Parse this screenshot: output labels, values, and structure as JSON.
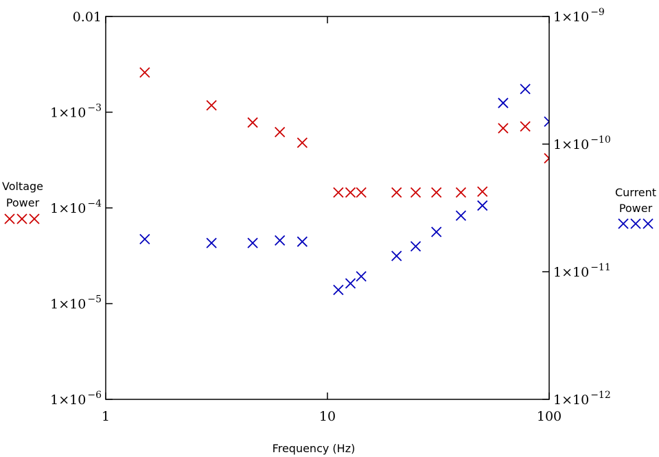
{
  "chart_data": {
    "type": "scatter",
    "xlabel": "Frequency (Hz)",
    "x_scale": "log",
    "xlim": [
      1,
      100
    ],
    "x_ticks": [
      {
        "value": 1,
        "label": "1"
      },
      {
        "value": 10,
        "label": "10"
      },
      {
        "value": 100,
        "label": "100"
      }
    ],
    "y_left": {
      "scale": "log",
      "ylim": [
        1e-06,
        0.01
      ],
      "ticks": [
        {
          "value": 0.01,
          "label": "0.01",
          "sup": ""
        },
        {
          "value": 0.001,
          "label": "1×10",
          "sup": "−3"
        },
        {
          "value": 0.0001,
          "label": "1×10",
          "sup": "−4"
        },
        {
          "value": 1e-05,
          "label": "1×10",
          "sup": "−5"
        },
        {
          "value": 1e-06,
          "label": "1×10",
          "sup": "−6"
        }
      ]
    },
    "y_right": {
      "scale": "log",
      "ylim": [
        1e-12,
        1e-09
      ],
      "ticks": [
        {
          "value": 1e-09,
          "label": "1×10",
          "sup": "−9"
        },
        {
          "value": 1e-10,
          "label": "1×10",
          "sup": "−10"
        },
        {
          "value": 1e-11,
          "label": "1×10",
          "sup": "−11"
        },
        {
          "value": 1e-12,
          "label": "1×10",
          "sup": "−12"
        }
      ]
    },
    "series": [
      {
        "name": "Voltage Power",
        "axis": "left",
        "color": "#cc0000",
        "marker": "x",
        "x": [
          1.5,
          3.0,
          4.6,
          6.1,
          7.7,
          11.2,
          12.7,
          14.2,
          20.5,
          25.0,
          31.0,
          40.0,
          50.0,
          62.0,
          78.0,
          100.0
        ],
        "y": [
          0.0026,
          0.00118,
          0.00078,
          0.00062,
          0.00048,
          0.000145,
          0.000145,
          0.000145,
          0.000145,
          0.000145,
          0.000145,
          0.000145,
          0.000148,
          0.00068,
          0.00071,
          0.00033
        ]
      },
      {
        "name": "Current Power",
        "axis": "right",
        "color": "#0000bb",
        "marker": "x",
        "x": [
          1.5,
          3.0,
          4.6,
          6.1,
          7.7,
          11.2,
          12.7,
          14.2,
          20.5,
          25.0,
          31.0,
          40.0,
          50.0,
          62.0,
          78.0,
          100.0
        ],
        "y": [
          1.8e-11,
          1.68e-11,
          1.68e-11,
          1.76e-11,
          1.72e-11,
          7.2e-12,
          8.1e-12,
          9.2e-12,
          1.33e-11,
          1.58e-11,
          2.05e-11,
          2.75e-11,
          3.3e-11,
          2.1e-10,
          2.7e-10,
          1.5e-10
        ]
      }
    ],
    "legend": [
      {
        "line1": "Voltage",
        "line2": "Power",
        "color": "#cc0000",
        "placement": "left"
      },
      {
        "line1": "Current",
        "line2": "Power",
        "color": "#0000bb",
        "placement": "right"
      }
    ],
    "grid": false
  }
}
